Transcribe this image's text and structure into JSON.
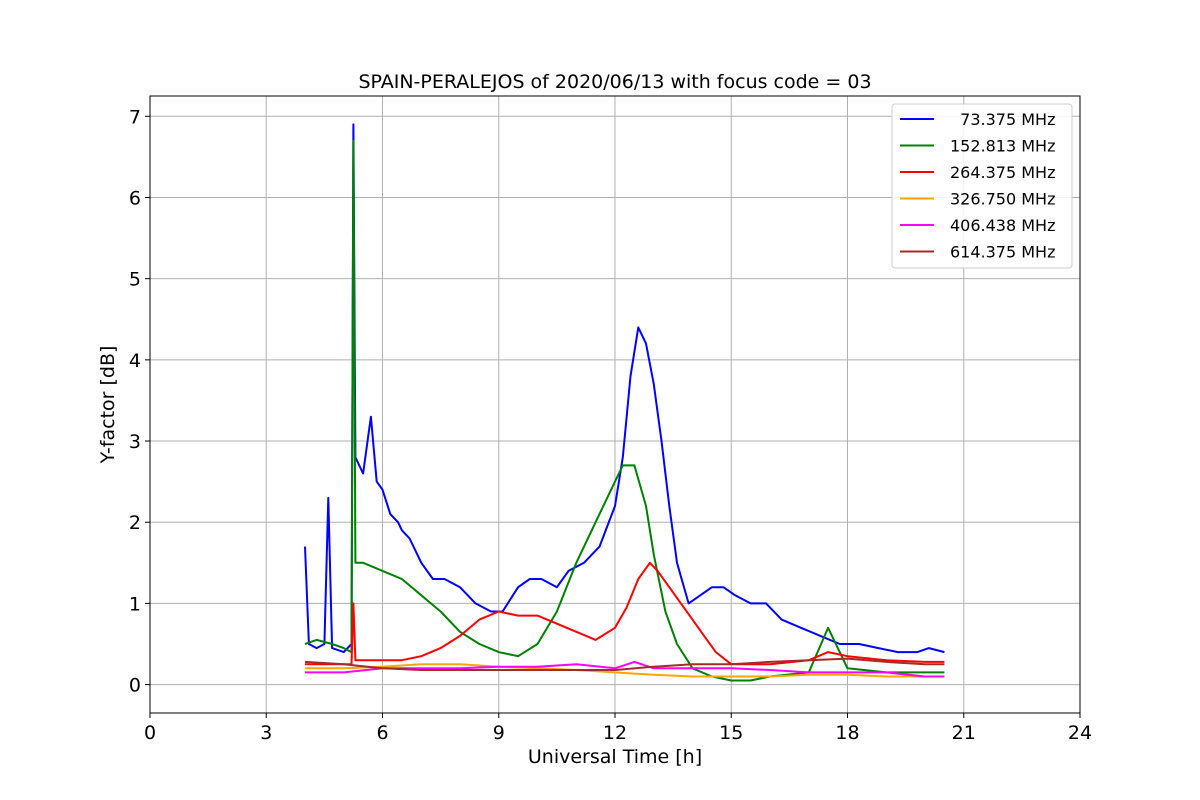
{
  "chart_data": {
    "type": "line",
    "title": "SPAIN-PERALEJOS of 2020/06/13 with focus code = 03",
    "xlabel": "Universal Time [h]",
    "ylabel": "Y-factor [dB]",
    "xlim": [
      0,
      24
    ],
    "ylim": [
      -0.35,
      7.25
    ],
    "xticks": [
      "0",
      "3",
      "6",
      "9",
      "12",
      "15",
      "18",
      "21",
      "24"
    ],
    "yticks": [
      "0",
      "1",
      "2",
      "3",
      "4",
      "5",
      "6",
      "7"
    ],
    "grid": true,
    "legend_position": "top-right",
    "series": [
      {
        "name": "  73.375 MHz",
        "color": "#0000ff",
        "x": [
          4.0,
          4.1,
          4.3,
          4.5,
          4.6,
          4.7,
          5.0,
          5.2,
          5.25,
          5.3,
          5.5,
          5.7,
          5.85,
          6.0,
          6.2,
          6.4,
          6.5,
          6.7,
          7.0,
          7.3,
          7.6,
          8.0,
          8.4,
          8.8,
          9.1,
          9.5,
          9.8,
          10.1,
          10.5,
          10.8,
          11.2,
          11.6,
          12.0,
          12.2,
          12.4,
          12.6,
          12.8,
          13.0,
          13.2,
          13.4,
          13.6,
          13.9,
          14.2,
          14.5,
          14.8,
          15.1,
          15.5,
          15.9,
          16.3,
          16.8,
          17.3,
          17.8,
          18.3,
          18.8,
          19.3,
          19.8,
          20.1,
          20.5
        ],
        "y": [
          1.7,
          0.5,
          0.45,
          0.5,
          2.3,
          0.45,
          0.4,
          0.5,
          6.9,
          2.8,
          2.6,
          3.3,
          2.5,
          2.4,
          2.1,
          2.0,
          1.9,
          1.8,
          1.5,
          1.3,
          1.3,
          1.2,
          1.0,
          0.9,
          0.9,
          1.2,
          1.3,
          1.3,
          1.2,
          1.4,
          1.5,
          1.7,
          2.2,
          2.8,
          3.8,
          4.4,
          4.2,
          3.7,
          3.0,
          2.2,
          1.5,
          1.0,
          1.1,
          1.2,
          1.2,
          1.1,
          1.0,
          1.0,
          0.8,
          0.7,
          0.6,
          0.5,
          0.5,
          0.45,
          0.4,
          0.4,
          0.45,
          0.4
        ]
      },
      {
        "name": "152.813 MHz",
        "color": "#008000",
        "x": [
          4.0,
          4.3,
          4.7,
          5.0,
          5.2,
          5.25,
          5.3,
          5.5,
          6.0,
          6.5,
          7.0,
          7.5,
          8.0,
          8.5,
          9.0,
          9.5,
          10.0,
          10.5,
          11.0,
          11.5,
          12.0,
          12.2,
          12.5,
          12.8,
          13.0,
          13.3,
          13.6,
          14.0,
          14.5,
          15.0,
          15.5,
          16.0,
          17.0,
          17.5,
          18.0,
          19.0,
          20.0,
          20.5
        ],
        "y": [
          0.5,
          0.55,
          0.5,
          0.45,
          0.4,
          6.7,
          1.5,
          1.5,
          1.4,
          1.3,
          1.1,
          0.9,
          0.65,
          0.5,
          0.4,
          0.35,
          0.5,
          0.9,
          1.5,
          2.0,
          2.5,
          2.7,
          2.7,
          2.2,
          1.6,
          0.9,
          0.5,
          0.2,
          0.1,
          0.05,
          0.05,
          0.1,
          0.15,
          0.7,
          0.2,
          0.15,
          0.15,
          0.15
        ]
      },
      {
        "name": "264.375 MHz",
        "color": "#ff0000",
        "x": [
          4.0,
          5.0,
          5.2,
          5.25,
          5.3,
          6.0,
          6.5,
          7.0,
          7.5,
          8.0,
          8.5,
          9.0,
          9.5,
          10.0,
          10.5,
          11.0,
          11.5,
          12.0,
          12.3,
          12.6,
          12.9,
          13.1,
          13.4,
          13.7,
          14.0,
          14.3,
          14.6,
          15.0,
          16.0,
          17.0,
          17.5,
          18.0,
          19.0,
          20.0,
          20.5
        ],
        "y": [
          0.25,
          0.25,
          0.25,
          1.0,
          0.3,
          0.3,
          0.3,
          0.35,
          0.45,
          0.6,
          0.8,
          0.9,
          0.85,
          0.85,
          0.75,
          0.65,
          0.55,
          0.7,
          0.95,
          1.3,
          1.5,
          1.4,
          1.2,
          1.0,
          0.8,
          0.6,
          0.4,
          0.25,
          0.25,
          0.3,
          0.4,
          0.35,
          0.3,
          0.28,
          0.28
        ]
      },
      {
        "name": "326.750 MHz",
        "color": "#ffa500",
        "x": [
          4.0,
          5.0,
          6.0,
          7.0,
          8.0,
          9.0,
          10.0,
          11.0,
          12.0,
          13.0,
          14.0,
          15.0,
          16.0,
          17.0,
          18.0,
          19.0,
          20.0,
          20.5
        ],
        "y": [
          0.2,
          0.2,
          0.22,
          0.25,
          0.25,
          0.22,
          0.2,
          0.18,
          0.15,
          0.12,
          0.1,
          0.1,
          0.1,
          0.12,
          0.12,
          0.1,
          0.1,
          0.1
        ]
      },
      {
        "name": "406.438 MHz",
        "color": "#ff00ff",
        "x": [
          4.0,
          5.0,
          6.0,
          7.0,
          8.0,
          9.0,
          10.0,
          11.0,
          12.0,
          12.5,
          13.0,
          14.0,
          15.0,
          16.0,
          17.0,
          18.0,
          19.0,
          20.0,
          20.5
        ],
        "y": [
          0.15,
          0.15,
          0.2,
          0.2,
          0.2,
          0.22,
          0.22,
          0.25,
          0.2,
          0.28,
          0.2,
          0.2,
          0.2,
          0.18,
          0.15,
          0.15,
          0.15,
          0.1,
          0.1
        ]
      },
      {
        "name": "614.375 MHz",
        "color": "#a52a2a",
        "x": [
          4.0,
          5.0,
          6.0,
          7.0,
          8.0,
          9.0,
          10.0,
          11.0,
          12.0,
          13.0,
          14.0,
          15.0,
          16.0,
          17.0,
          18.0,
          19.0,
          20.0,
          20.5
        ],
        "y": [
          0.28,
          0.25,
          0.2,
          0.18,
          0.18,
          0.18,
          0.18,
          0.18,
          0.18,
          0.22,
          0.25,
          0.25,
          0.28,
          0.3,
          0.32,
          0.28,
          0.25,
          0.25
        ]
      }
    ]
  }
}
